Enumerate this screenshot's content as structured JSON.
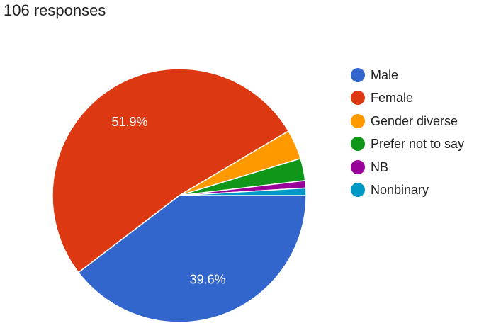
{
  "header": {
    "responses_label": "106 responses"
  },
  "chart_data": {
    "type": "pie",
    "total": 106,
    "slices": [
      {
        "label": "Male",
        "value": 42,
        "percent_label": "39.6%",
        "color": "#3366cc"
      },
      {
        "label": "Female",
        "value": 55,
        "percent_label": "51.9%",
        "color": "#dc3912"
      },
      {
        "label": "Gender diverse",
        "value": 4,
        "percent_label": "",
        "color": "#ff9900"
      },
      {
        "label": "Prefer not to say",
        "value": 3,
        "percent_label": "",
        "color": "#109618"
      },
      {
        "label": "NB",
        "value": 1,
        "percent_label": "",
        "color": "#990099"
      },
      {
        "label": "Nonbinary",
        "value": 1,
        "percent_label": "",
        "color": "#0099c6"
      }
    ],
    "legend_position": "right"
  }
}
